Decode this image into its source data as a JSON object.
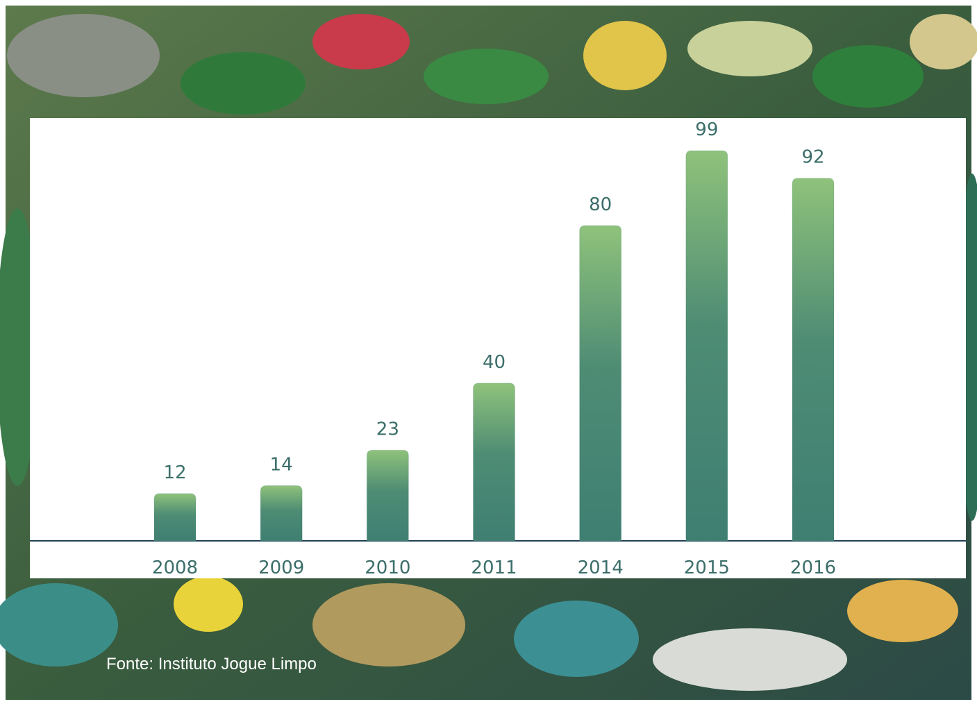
{
  "chart_data": {
    "type": "bar",
    "categories": [
      "2008",
      "2009",
      "2010",
      "2011",
      "2014",
      "2015",
      "2016"
    ],
    "values": [
      12,
      14,
      23,
      40,
      80,
      99,
      92
    ],
    "color": "#3f7f72",
    "source": "Fonte: Instituto Jogue Limpo"
  }
}
